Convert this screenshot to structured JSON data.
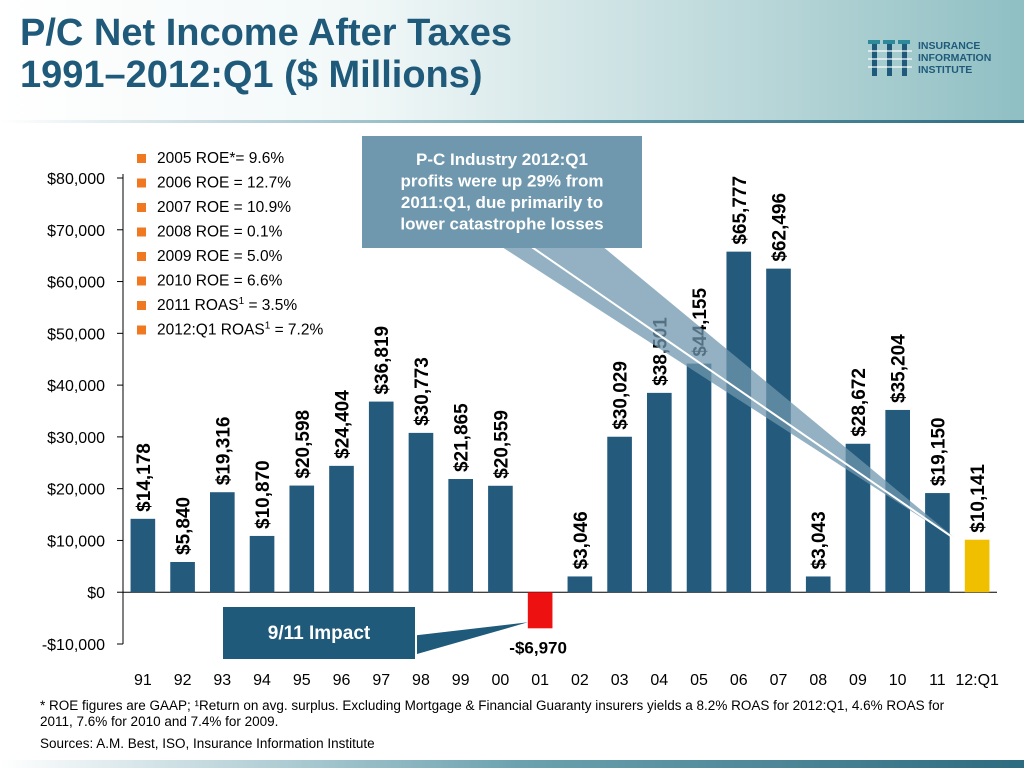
{
  "slide": {
    "title_line1": "P/C Net Income After Taxes",
    "title_line2": "1991–2012:Q1 ($ Millions)",
    "logo_line1": "INSURANCE",
    "logo_line2": "INFORMATION",
    "logo_line3": "INSTITUTE",
    "footnote": "* ROE figures are GAAP; ¹Return on avg. surplus.  Excluding Mortgage & Financial Guaranty insurers yields a 8.2% ROAS for 2012:Q1, 4.6% ROAS for 2011, 7.6% for 2010 and 7.4% for 2009.",
    "sources": "Sources: A.M. Best, ISO, Insurance Information Institute"
  },
  "chart_data": {
    "type": "bar",
    "title": "P/C Net Income After Taxes 1991–2012:Q1 ($ Millions)",
    "xlabel": "",
    "ylabel": "",
    "ylim": [
      -10000,
      80000
    ],
    "yticks": [
      -10000,
      0,
      10000,
      20000,
      30000,
      40000,
      50000,
      60000,
      70000,
      80000
    ],
    "ytick_labels": [
      "-$10,000",
      "$0",
      "$10,000",
      "$20,000",
      "$30,000",
      "$40,000",
      "$50,000",
      "$60,000",
      "$70,000",
      "$80,000"
    ],
    "grid": false,
    "categories": [
      "91",
      "92",
      "93",
      "94",
      "95",
      "96",
      "97",
      "98",
      "99",
      "00",
      "01",
      "02",
      "03",
      "04",
      "05",
      "06",
      "07",
      "08",
      "09",
      "10",
      "11",
      "12:Q1"
    ],
    "values": [
      14178,
      5840,
      19316,
      10870,
      20598,
      24404,
      36819,
      30773,
      21865,
      20559,
      -6970,
      3046,
      30029,
      38501,
      44155,
      65777,
      62496,
      3043,
      28672,
      35204,
      19150,
      10141
    ],
    "value_labels": [
      "$14,178",
      "$5,840",
      "$19,316",
      "$10,870",
      "$20,598",
      "$24,404",
      "$36,819",
      "$30,773",
      "$21,865",
      "$20,559",
      "-$6,970",
      "$3,046",
      "$30,029",
      "$38,501",
      "$44,155",
      "$65,777",
      "$62,496",
      "$3,043",
      "$28,672",
      "$35,204",
      "$19,150",
      "$10,141"
    ],
    "colors": {
      "default": "#245a7c",
      "negative": "#ee1111",
      "latest": "#f0c000"
    },
    "legend_position": "top-left",
    "legend_marker_color": "#f07820",
    "legend": [
      {
        "text": "2005 ROE*= 9.6%",
        "sup": ""
      },
      {
        "text": "2006 ROE = 12.7%",
        "sup": ""
      },
      {
        "text": "2007 ROE = 10.9%",
        "sup": ""
      },
      {
        "text": "2008 ROE = 0.1%",
        "sup": ""
      },
      {
        "text": "2009 ROE = 5.0%",
        "sup": ""
      },
      {
        "text": "2010 ROE = 6.6%",
        "sup": ""
      },
      {
        "text": "2011 ROAS",
        "sup": "1",
        "suffix": " = 3.5%"
      },
      {
        "text": "2012:Q1 ROAS",
        "sup": "1",
        "suffix": " = 7.2%"
      }
    ],
    "annotations": [
      {
        "id": "callout-2012",
        "lines": [
          "P-C Industry 2012:Q1",
          "profits were up 29% from",
          "2011:Q1, due primarily to",
          "lower catastrophe losses"
        ],
        "color": "#6f97ad",
        "points_to": [
          "11",
          "12:Q1"
        ]
      },
      {
        "id": "callout-911",
        "lines": [
          "9/11 Impact"
        ],
        "color": "#1f5a7a",
        "points_to": [
          "01"
        ]
      }
    ]
  }
}
